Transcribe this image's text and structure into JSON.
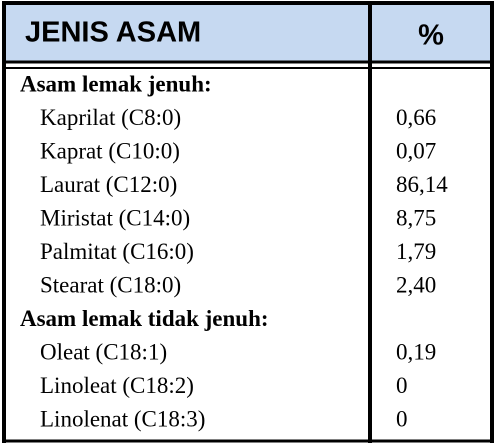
{
  "table": {
    "header": [
      "JENIS ASAM",
      "%"
    ],
    "groups": [
      {
        "title": "Asam lemak jenuh:",
        "rows": [
          [
            "Kaprilat (C8:0)",
            "0,66"
          ],
          [
            "Kaprat (C10:0)",
            "0,07"
          ],
          [
            "Laurat (C12:0)",
            "86,14"
          ],
          [
            "Miristat (C14:0)",
            "8,75"
          ],
          [
            "Palmitat (C16:0)",
            "1,79"
          ],
          [
            "Stearat (C18:0)",
            "2,40"
          ]
        ]
      },
      {
        "title": "Asam lemak tidak jenuh:",
        "rows": [
          [
            "Oleat (C18:1)",
            "0,19"
          ],
          [
            "Linoleat (C18:2)",
            "0"
          ],
          [
            "Linolenat (C18:3)",
            "0"
          ]
        ]
      }
    ]
  }
}
